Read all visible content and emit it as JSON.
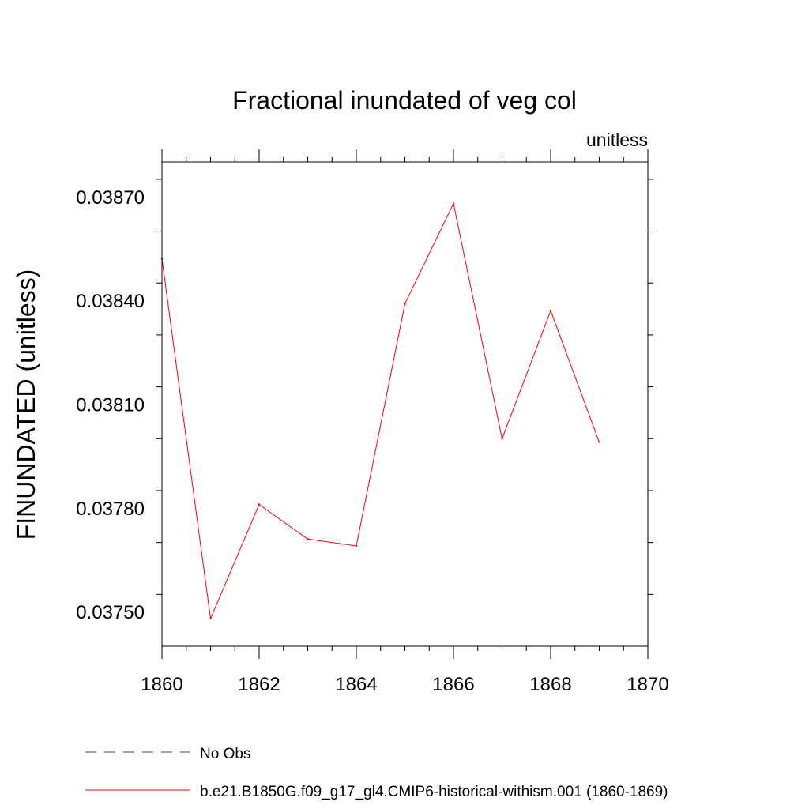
{
  "chart_data": {
    "type": "line",
    "title": "Fractional inundated of veg col",
    "units_label": "unitless",
    "ylabel": "FINUNDATED  (unitless)",
    "xlabel": "",
    "xlim": [
      1860,
      1870
    ],
    "ylim": [
      0.0374,
      0.0388
    ],
    "x_ticks": [
      1860,
      1862,
      1864,
      1866,
      1868,
      1870
    ],
    "x_tick_labels": [
      "1860",
      "1862",
      "1864",
      "1866",
      "1868",
      "1870"
    ],
    "y_ticks": [
      0.0375,
      0.0378,
      0.0381,
      0.0384,
      0.0387
    ],
    "y_tick_labels": [
      "0.03750",
      "0.03780",
      "0.03810",
      "0.03840",
      "0.03870"
    ],
    "grid": false,
    "legend_position": "bottom",
    "series": [
      {
        "name": "No Obs",
        "color": "#3a3aa0",
        "style": "dashed",
        "x": [],
        "values": []
      },
      {
        "name": "b.e21.B1850G.f09_g17_gl4.CMIP6-historical-withism.001 (1860-1869)",
        "color": "#ff0000",
        "style": "solid",
        "x": [
          1860,
          1861,
          1862,
          1863,
          1864,
          1865,
          1866,
          1867,
          1868,
          1869
        ],
        "values": [
          0.03852,
          0.03748,
          0.03781,
          0.03771,
          0.03769,
          0.03839,
          0.03868,
          0.038,
          0.03837,
          0.03799
        ]
      }
    ]
  }
}
